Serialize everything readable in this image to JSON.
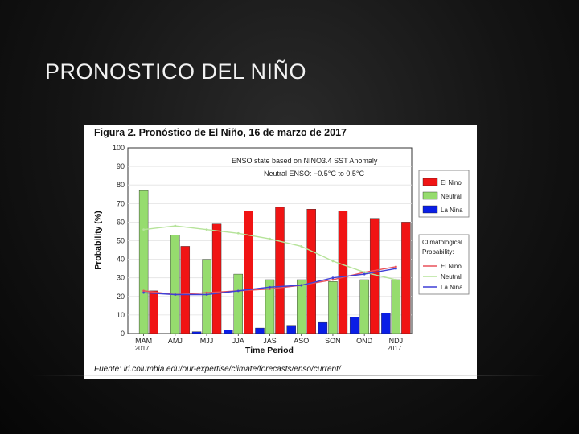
{
  "slide": {
    "title": "PRONOSTICO DEL NIÑO"
  },
  "figure": {
    "title": "Figura 2.  Pronóstico de El Niño, 16 de marzo de 2017",
    "source": "Fuente: iri.columbia.edu/our-expertise/climate/forecasts/enso/current/"
  },
  "chart_data": {
    "type": "bar",
    "ylabel": "Probability (%)",
    "xlabel": "Time Period",
    "ylim": [
      0,
      100
    ],
    "yticks": [
      "0",
      "10",
      "20",
      "30",
      "40",
      "50",
      "60",
      "70",
      "80",
      "90",
      "100"
    ],
    "categories": [
      "MAM",
      "AMJ",
      "MJJ",
      "JJA",
      "JAS",
      "ASO",
      "SON",
      "OND",
      "NDJ"
    ],
    "category_years": [
      "2017",
      "",
      "",
      "",
      "",
      "",
      "",
      "",
      "2017"
    ],
    "annotation_line1": "ENSO state based on NINO3.4 SST Anomaly",
    "annotation_line2": "Neutral ENSO: −0.5°C to 0.5°C",
    "grid": true,
    "legend_position": "right",
    "series": [
      {
        "name": "La Nina",
        "color": "#0a1ee6",
        "values": [
          0,
          0,
          1,
          2,
          3,
          4,
          6,
          9,
          11
        ]
      },
      {
        "name": "Neutral",
        "color": "#96dc6e",
        "values": [
          77,
          53,
          40,
          32,
          29,
          29,
          28,
          29,
          29
        ]
      },
      {
        "name": "El Nino",
        "color": "#f01414",
        "values": [
          23,
          47,
          59,
          66,
          68,
          67,
          66,
          62,
          60
        ]
      }
    ],
    "climatology_title_1": "Climatological",
    "climatology_title_2": "Probability:",
    "climatology": [
      {
        "name": "El Nino",
        "color": "#e8505a",
        "values": [
          23,
          21,
          22,
          23,
          24,
          26,
          29,
          33,
          36
        ]
      },
      {
        "name": "Neutral",
        "color": "#b6e39a",
        "values": [
          56,
          58,
          56,
          54,
          51,
          47,
          39,
          33,
          29
        ]
      },
      {
        "name": "La Nina",
        "color": "#3f3fd6",
        "values": [
          22,
          21,
          21,
          23,
          25,
          26,
          30,
          32,
          35
        ]
      }
    ]
  }
}
